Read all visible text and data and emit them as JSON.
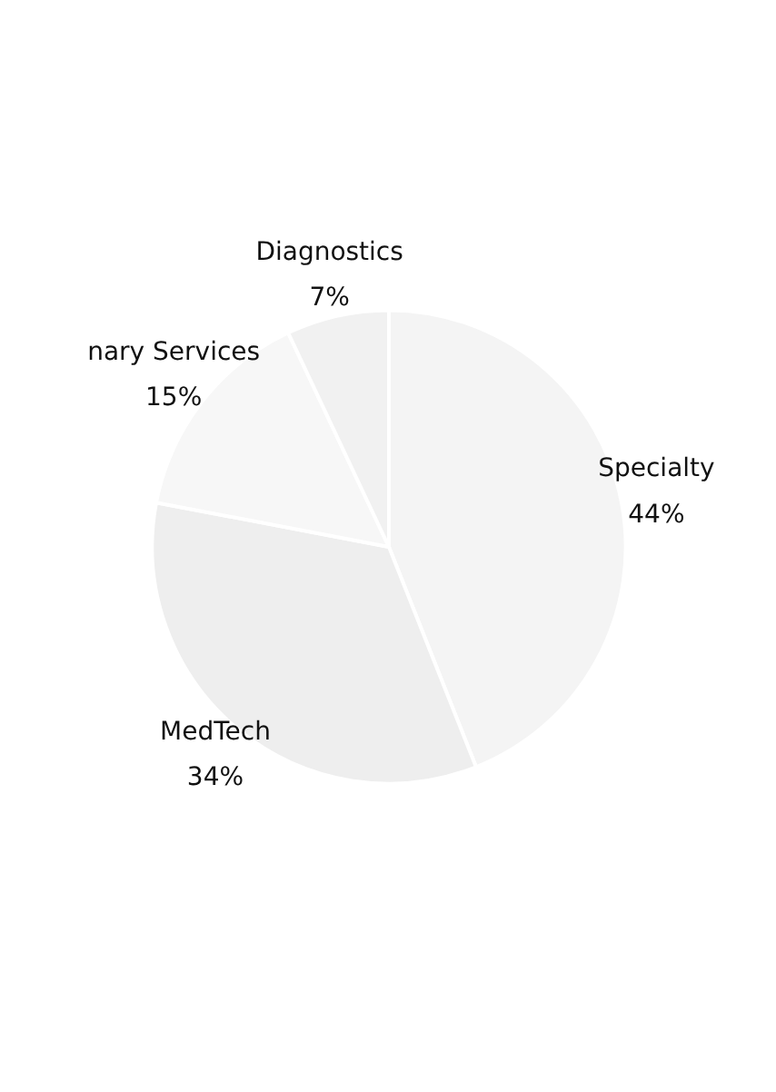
{
  "chart_data": {
    "type": "pie",
    "categories": [
      "Specialty",
      "MedTech",
      "nary Services",
      "Diagnostics"
    ],
    "values": [
      44,
      34,
      15,
      7
    ],
    "colors": [
      "#f4f4f4",
      "#eeeeee",
      "#f7f7f7",
      "#f1f1f1"
    ],
    "value_labels": [
      "44%",
      "34%",
      "15%",
      "7%"
    ]
  }
}
